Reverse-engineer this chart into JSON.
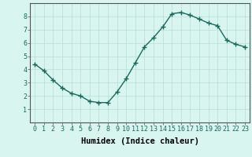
{
  "x": [
    0,
    1,
    2,
    3,
    4,
    5,
    6,
    7,
    8,
    9,
    10,
    11,
    12,
    13,
    14,
    15,
    16,
    17,
    18,
    19,
    20,
    21,
    22,
    23
  ],
  "y": [
    4.4,
    3.9,
    3.2,
    2.6,
    2.2,
    2.0,
    1.6,
    1.5,
    1.5,
    2.3,
    3.3,
    4.5,
    5.7,
    6.4,
    7.2,
    8.2,
    8.3,
    8.1,
    7.8,
    7.5,
    7.3,
    6.2,
    5.9,
    5.7
  ],
  "xlabel": "Humidex (Indice chaleur)",
  "ylim": [
    0,
    9
  ],
  "xlim": [
    -0.5,
    23.5
  ],
  "yticks": [
    1,
    2,
    3,
    4,
    5,
    6,
    7,
    8
  ],
  "xticks": [
    0,
    1,
    2,
    3,
    4,
    5,
    6,
    7,
    8,
    9,
    10,
    11,
    12,
    13,
    14,
    15,
    16,
    17,
    18,
    19,
    20,
    21,
    22,
    23
  ],
  "line_color": "#1a6b5e",
  "marker_color": "#1a6b5e",
  "bg_color": "#d8f5f0",
  "grid_color": "#b8ddd6",
  "xlabel_fontsize": 7.5,
  "tick_fontsize": 6,
  "marker": "+",
  "markersize": 4,
  "linewidth": 1.0
}
